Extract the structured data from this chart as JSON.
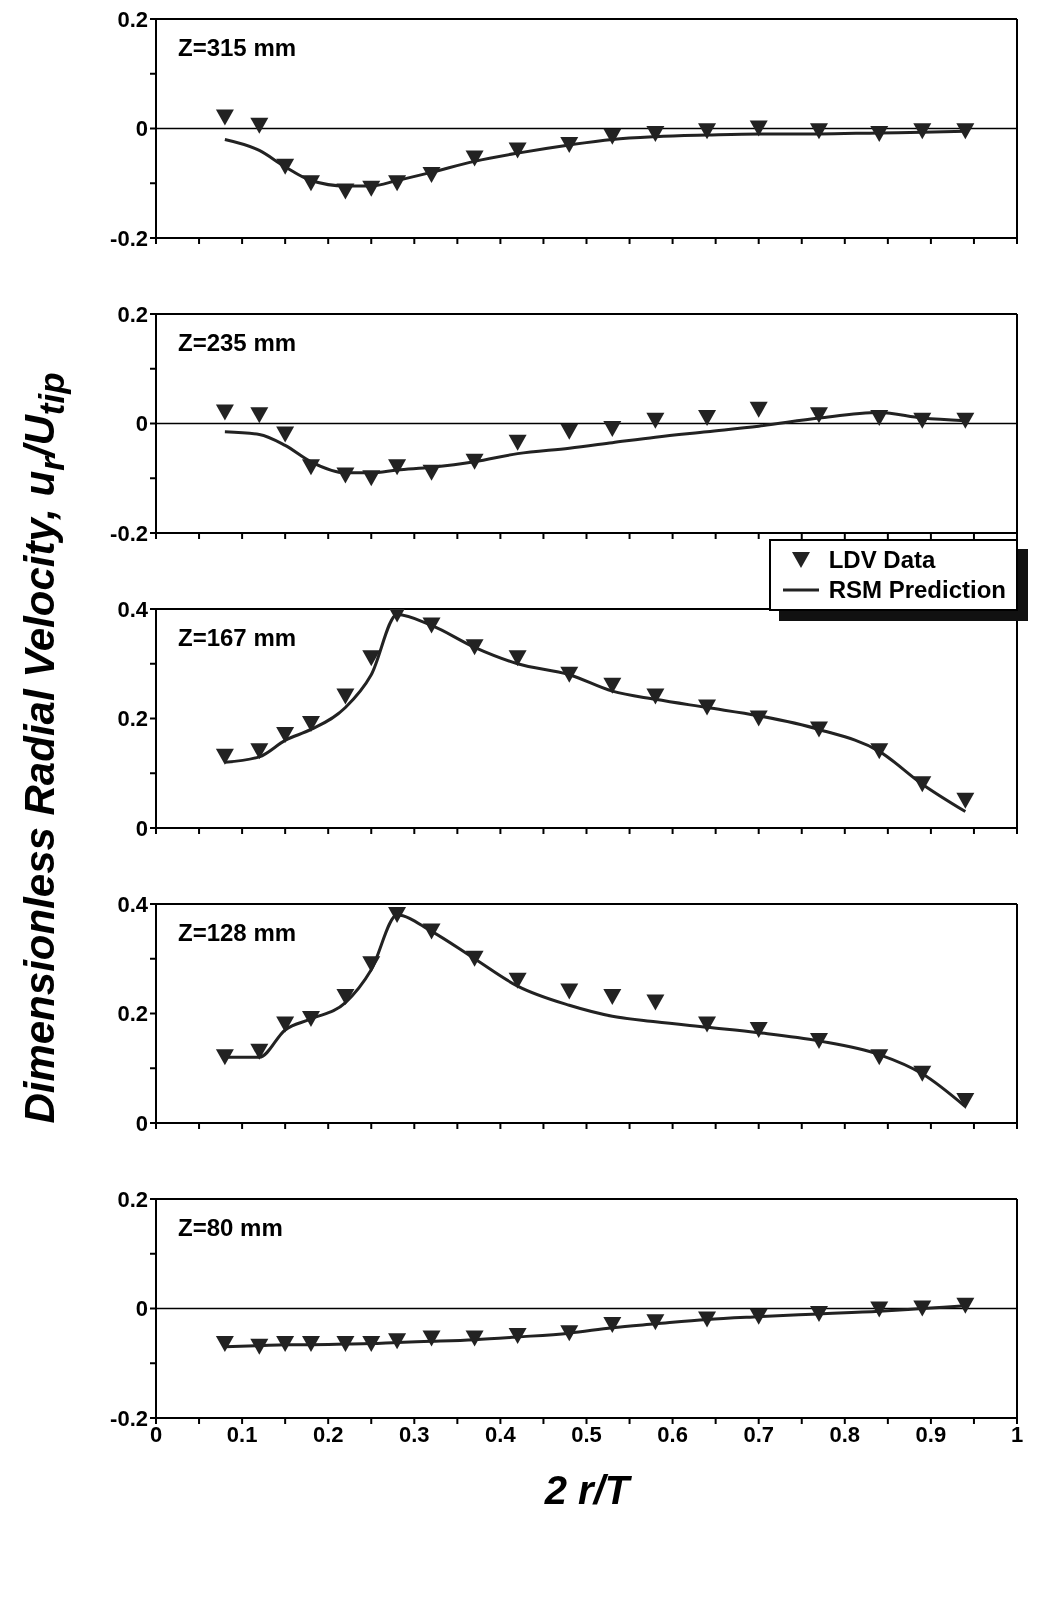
{
  "chart_data": [
    {
      "type": "scatter",
      "annotations": [
        "Z=315 mm"
      ],
      "x": [
        0.08,
        0.12,
        0.15,
        0.18,
        0.22,
        0.25,
        0.28,
        0.32,
        0.37,
        0.42,
        0.48,
        0.53,
        0.58,
        0.64,
        0.7,
        0.77,
        0.84,
        0.89,
        0.94
      ],
      "series": [
        {
          "marker": "triangle",
          "color": "#222222",
          "values": [
            0.02,
            0.005,
            -0.07,
            -0.1,
            -0.115,
            -0.11,
            -0.1,
            -0.085,
            -0.055,
            -0.04,
            -0.03,
            -0.015,
            -0.01,
            -0.005,
            0,
            -0.005,
            -0.01,
            -0.005,
            -0.005
          ]
        },
        {
          "type": "line",
          "marker": "none",
          "color": "#222222",
          "values": [
            -0.02,
            -0.04,
            -0.07,
            -0.095,
            -0.105,
            -0.105,
            -0.095,
            -0.08,
            -0.06,
            -0.045,
            -0.03,
            -0.02,
            -0.015,
            -0.012,
            -0.01,
            -0.01,
            -0.008,
            -0.007,
            -0.005
          ]
        }
      ],
      "xlim": [
        0,
        1
      ],
      "xticks": [
        0,
        {
          "value": 0.05,
          "label": null
        },
        0.1,
        {
          "value": 0.15,
          "label": null
        },
        0.2,
        {
          "value": 0.25,
          "label": null
        },
        0.3,
        {
          "value": 0.35,
          "label": null
        },
        0.4,
        {
          "value": 0.45,
          "label": null
        },
        0.5,
        {
          "value": 0.55,
          "label": null
        },
        0.6,
        {
          "value": 0.65,
          "label": null
        },
        0.7,
        {
          "value": 0.75,
          "label": null
        },
        0.8,
        {
          "value": 0.85,
          "label": null
        },
        0.9,
        {
          "value": 0.95,
          "label": null
        },
        1
      ],
      "ylim": [
        -0.2,
        0.2
      ],
      "yticks": [
        -0.2,
        {
          "value": -0.1,
          "label": null
        },
        0,
        {
          "value": 0.1,
          "label": null
        },
        0.2
      ],
      "tick_labels": "y",
      "ref_lines": [
        {
          "axis": "y",
          "value": 0,
          "color": "#000000"
        }
      ]
    },
    {
      "type": "scatter",
      "annotations": [
        "Z=235 mm"
      ],
      "x": [
        0.08,
        0.12,
        0.15,
        0.18,
        0.22,
        0.25,
        0.28,
        0.32,
        0.37,
        0.42,
        0.48,
        0.53,
        0.58,
        0.64,
        0.7,
        0.77,
        0.84,
        0.89,
        0.94
      ],
      "series": [
        {
          "marker": "triangle",
          "name": "LDV Data",
          "color": "#222222",
          "values": [
            0.02,
            0.015,
            -0.02,
            -0.08,
            -0.095,
            -0.1,
            -0.08,
            -0.09,
            -0.07,
            -0.035,
            -0.015,
            -0.01,
            0.005,
            0.01,
            0.025,
            0.015,
            0.01,
            0.005,
            0.005
          ]
        },
        {
          "type": "line",
          "marker": "none",
          "name": "RSM Prediction",
          "color": "#222222",
          "values": [
            -0.015,
            -0.02,
            -0.04,
            -0.07,
            -0.09,
            -0.09,
            -0.085,
            -0.08,
            -0.07,
            -0.055,
            -0.045,
            -0.035,
            -0.025,
            -0.015,
            -0.005,
            0.01,
            0.02,
            0.01,
            0.005
          ]
        }
      ],
      "legend": "bottom right",
      "xlim": [
        0,
        1
      ],
      "xticks": [
        0,
        {
          "value": 0.05,
          "label": null
        },
        0.1,
        {
          "value": 0.15,
          "label": null
        },
        0.2,
        {
          "value": 0.25,
          "label": null
        },
        0.3,
        {
          "value": 0.35,
          "label": null
        },
        0.4,
        {
          "value": 0.45,
          "label": null
        },
        0.5,
        {
          "value": 0.55,
          "label": null
        },
        0.6,
        {
          "value": 0.65,
          "label": null
        },
        0.7,
        {
          "value": 0.75,
          "label": null
        },
        0.8,
        {
          "value": 0.85,
          "label": null
        },
        0.9,
        {
          "value": 0.95,
          "label": null
        },
        1
      ],
      "ylim": [
        -0.2,
        0.2
      ],
      "yticks": [
        -0.2,
        {
          "value": -0.1,
          "label": null
        },
        0,
        {
          "value": 0.1,
          "label": null
        },
        0.2
      ],
      "tick_labels": "y",
      "ref_lines": [
        {
          "axis": "y",
          "value": 0,
          "color": "#000000"
        }
      ]
    },
    {
      "type": "scatter",
      "annotations": [
        "Z=167 mm"
      ],
      "ylabel": "Dimensionless Radial Velocity, u$_{r}$/U$_{tip}$",
      "x": [
        0.08,
        0.12,
        0.15,
        0.18,
        0.22,
        0.25,
        0.28,
        0.32,
        0.37,
        0.42,
        0.48,
        0.53,
        0.58,
        0.64,
        0.7,
        0.77,
        0.84,
        0.89,
        0.94
      ],
      "series": [
        {
          "marker": "triangle",
          "color": "#222222",
          "values": [
            0.13,
            0.14,
            0.17,
            0.19,
            0.24,
            0.31,
            0.39,
            0.37,
            0.33,
            0.31,
            0.28,
            0.26,
            0.24,
            0.22,
            0.2,
            0.18,
            0.14,
            0.08,
            0.05
          ]
        },
        {
          "type": "line",
          "marker": "none",
          "color": "#222222",
          "values": [
            0.12,
            0.13,
            0.16,
            0.18,
            0.22,
            0.28,
            0.39,
            0.37,
            0.33,
            0.3,
            0.28,
            0.25,
            0.235,
            0.22,
            0.205,
            0.18,
            0.14,
            0.08,
            0.03
          ]
        }
      ],
      "xlim": [
        0,
        1
      ],
      "xticks": [
        0,
        {
          "value": 0.05,
          "label": null
        },
        0.1,
        {
          "value": 0.15,
          "label": null
        },
        0.2,
        {
          "value": 0.25,
          "label": null
        },
        0.3,
        {
          "value": 0.35,
          "label": null
        },
        0.4,
        {
          "value": 0.45,
          "label": null
        },
        0.5,
        {
          "value": 0.55,
          "label": null
        },
        0.6,
        {
          "value": 0.65,
          "label": null
        },
        0.7,
        {
          "value": 0.75,
          "label": null
        },
        0.8,
        {
          "value": 0.85,
          "label": null
        },
        0.9,
        {
          "value": 0.95,
          "label": null
        },
        1
      ],
      "ylim": [
        0,
        0.4
      ],
      "yticks": [
        0,
        {
          "value": 0.1,
          "label": null
        },
        0.2,
        {
          "value": 0.3,
          "label": null
        },
        0.4
      ],
      "tick_labels": "y"
    },
    {
      "type": "scatter",
      "annotations": [
        "Z=128 mm"
      ],
      "x": [
        0.08,
        0.12,
        0.15,
        0.18,
        0.22,
        0.25,
        0.28,
        0.32,
        0.37,
        0.42,
        0.48,
        0.53,
        0.58,
        0.64,
        0.7,
        0.77,
        0.84,
        0.89,
        0.94
      ],
      "series": [
        {
          "marker": "triangle",
          "color": "#222222",
          "values": [
            0.12,
            0.13,
            0.18,
            0.19,
            0.23,
            0.29,
            0.38,
            0.35,
            0.3,
            0.26,
            0.24,
            0.23,
            0.22,
            0.18,
            0.17,
            0.15,
            0.12,
            0.09,
            0.04
          ]
        },
        {
          "type": "line",
          "marker": "none",
          "color": "#222222",
          "values": [
            0.12,
            0.12,
            0.17,
            0.19,
            0.22,
            0.28,
            0.38,
            0.35,
            0.3,
            0.25,
            0.215,
            0.195,
            0.185,
            0.175,
            0.165,
            0.15,
            0.125,
            0.09,
            0.03
          ]
        }
      ],
      "xlim": [
        0,
        1
      ],
      "xticks": [
        0,
        {
          "value": 0.05,
          "label": null
        },
        0.1,
        {
          "value": 0.15,
          "label": null
        },
        0.2,
        {
          "value": 0.25,
          "label": null
        },
        0.3,
        {
          "value": 0.35,
          "label": null
        },
        0.4,
        {
          "value": 0.45,
          "label": null
        },
        0.5,
        {
          "value": 0.55,
          "label": null
        },
        0.6,
        {
          "value": 0.65,
          "label": null
        },
        0.7,
        {
          "value": 0.75,
          "label": null
        },
        0.8,
        {
          "value": 0.85,
          "label": null
        },
        0.9,
        {
          "value": 0.95,
          "label": null
        },
        1
      ],
      "ylim": [
        0,
        0.4
      ],
      "yticks": [
        0,
        {
          "value": 0.1,
          "label": null
        },
        0.2,
        {
          "value": 0.3,
          "label": null
        },
        0.4
      ],
      "tick_labels": "y"
    },
    {
      "type": "scatter",
      "annotations": [
        "Z=80 mm"
      ],
      "xlabel": "2 r/T",
      "x": [
        0.08,
        0.12,
        0.15,
        0.18,
        0.22,
        0.25,
        0.28,
        0.32,
        0.37,
        0.42,
        0.48,
        0.53,
        0.58,
        0.64,
        0.7,
        0.77,
        0.84,
        0.89,
        0.94
      ],
      "series": [
        {
          "marker": "triangle",
          "color": "#222222",
          "values": [
            -0.065,
            -0.07,
            -0.065,
            -0.065,
            -0.065,
            -0.065,
            -0.06,
            -0.055,
            -0.055,
            -0.05,
            -0.045,
            -0.03,
            -0.025,
            -0.02,
            -0.015,
            -0.01,
            -0.002,
            0,
            0.005
          ]
        },
        {
          "type": "line",
          "marker": "none",
          "color": "#222222",
          "values": [
            -0.07,
            -0.068,
            -0.066,
            -0.066,
            -0.065,
            -0.064,
            -0.062,
            -0.06,
            -0.057,
            -0.052,
            -0.045,
            -0.035,
            -0.028,
            -0.02,
            -0.015,
            -0.01,
            -0.005,
            0,
            0.005
          ]
        }
      ],
      "xlim": [
        0,
        1
      ],
      "xticks": [
        0,
        {
          "value": 0.05,
          "label": null
        },
        0.1,
        {
          "value": 0.15,
          "label": null
        },
        0.2,
        {
          "value": 0.25,
          "label": null
        },
        0.3,
        {
          "value": 0.35,
          "label": null
        },
        0.4,
        {
          "value": 0.45,
          "label": null
        },
        0.5,
        {
          "value": 0.55,
          "label": null
        },
        0.6,
        {
          "value": 0.65,
          "label": null
        },
        0.7,
        {
          "value": 0.75,
          "label": null
        },
        0.8,
        {
          "value": 0.85,
          "label": null
        },
        0.9,
        {
          "value": 0.95,
          "label": null
        },
        1
      ],
      "ylim": [
        -0.2,
        0.2
      ],
      "yticks": [
        -0.2,
        {
          "value": -0.1,
          "label": null
        },
        0,
        {
          "value": 0.1,
          "label": null
        },
        0.2
      ],
      "ref_lines": [
        {
          "axis": "y",
          "value": 0,
          "color": "#000000"
        }
      ]
    }
  ]
}
